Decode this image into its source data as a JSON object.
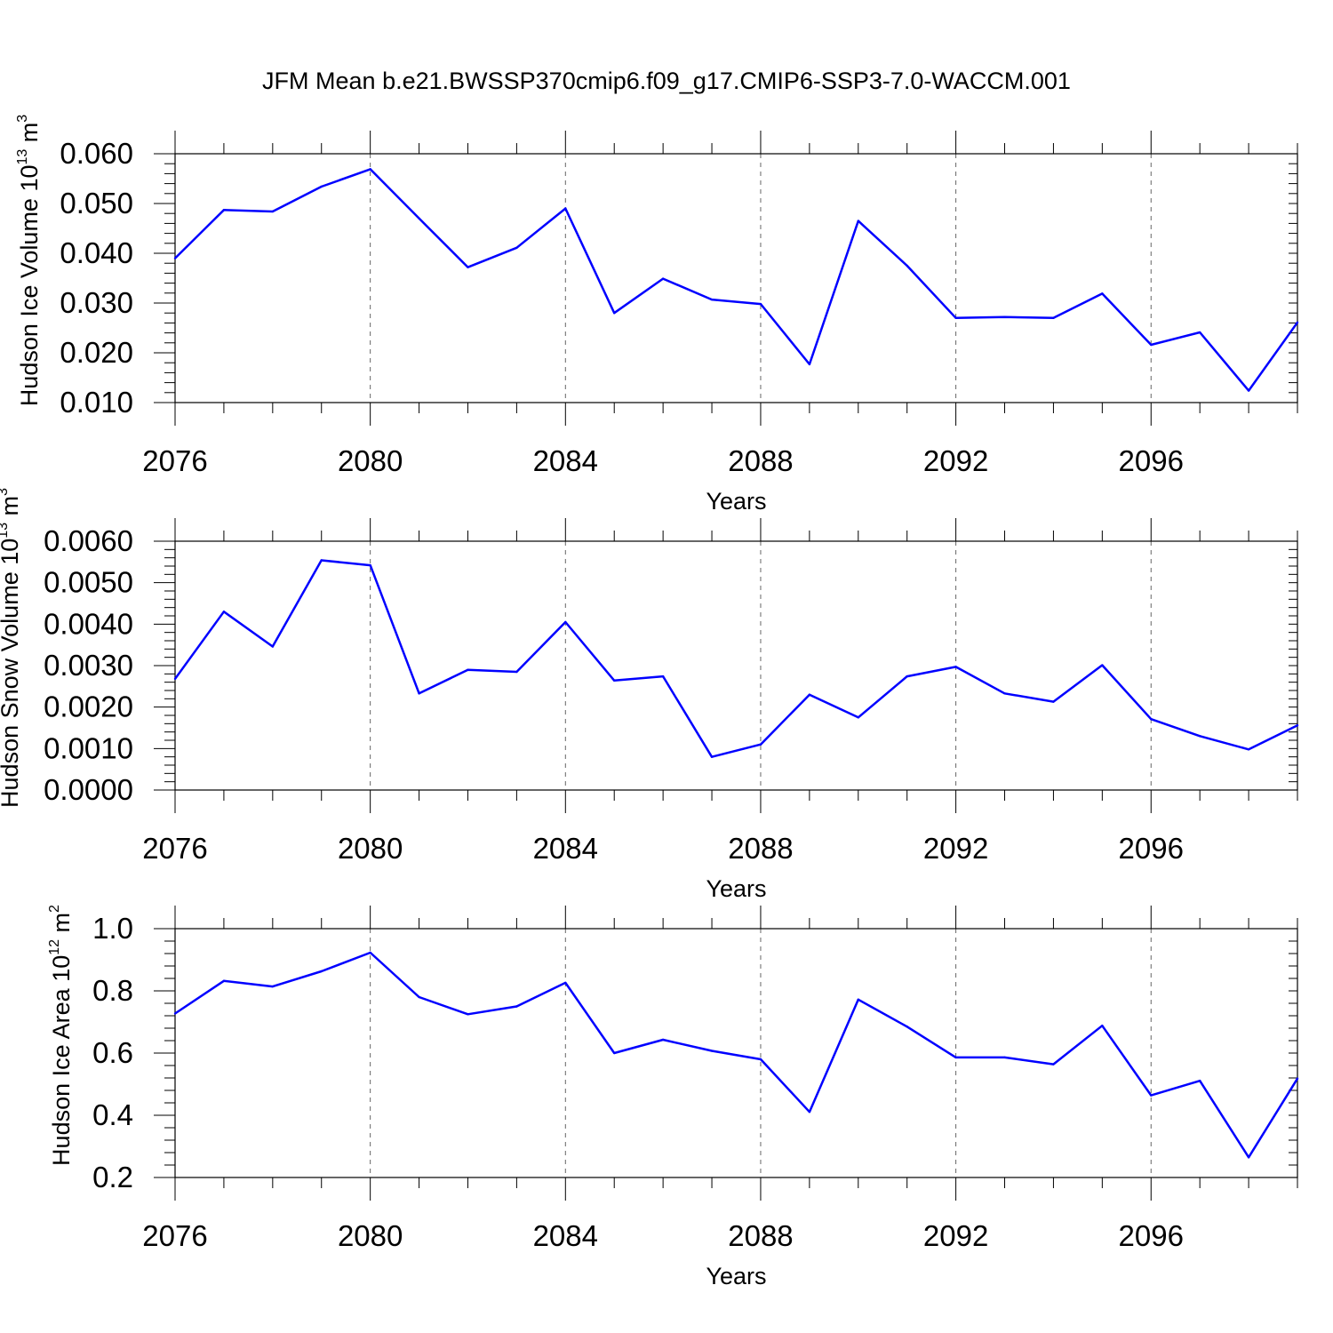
{
  "title": "JFM Mean b.e21.BWSSP370cmip6.f09_g17.CMIP6-SSP3-7.0-WACCM.001",
  "colors": {
    "line": "#0000ff",
    "grid": "#666666",
    "axis": "#000000"
  },
  "chart_data": [
    {
      "type": "line",
      "name": "ice-volume",
      "ylabel": "Hudson Ice Volume",
      "yunits_base": "10",
      "yunits_exp": "13",
      "yunits_unit": "m",
      "yunits_unit_exp": "3",
      "xlabel": "Years",
      "xlim": [
        2076,
        2099
      ],
      "ylim": [
        0.01,
        0.06
      ],
      "xticks": [
        "2076",
        "2080",
        "2084",
        "2088",
        "2092",
        "2096"
      ],
      "xtick_values": [
        2076,
        2080,
        2084,
        2088,
        2092,
        2096
      ],
      "yticks": [
        "0.010",
        "0.020",
        "0.030",
        "0.040",
        "0.050",
        "0.060"
      ],
      "ytick_values": [
        0.01,
        0.02,
        0.03,
        0.04,
        0.05,
        0.06
      ],
      "x": [
        2076,
        2077,
        2078,
        2079,
        2080,
        2081,
        2082,
        2083,
        2084,
        2085,
        2086,
        2087,
        2088,
        2089,
        2090,
        2091,
        2092,
        2093,
        2094,
        2095,
        2096,
        2097,
        2098,
        2099
      ],
      "values": [
        0.039,
        0.0487,
        0.0484,
        0.0534,
        0.0569,
        0.047,
        0.0372,
        0.0411,
        0.049,
        0.028,
        0.0349,
        0.0307,
        0.0298,
        0.0177,
        0.0465,
        0.0375,
        0.027,
        0.0272,
        0.027,
        0.0319,
        0.0216,
        0.0241,
        0.0124,
        0.0261
      ]
    },
    {
      "type": "line",
      "name": "snow-volume",
      "ylabel": "Hudson Snow Volume",
      "yunits_base": "10",
      "yunits_exp": "13",
      "yunits_unit": "m",
      "yunits_unit_exp": "3",
      "xlabel": "Years",
      "xlim": [
        2076,
        2099
      ],
      "ylim": [
        0.0,
        0.006
      ],
      "xticks": [
        "2076",
        "2080",
        "2084",
        "2088",
        "2092",
        "2096"
      ],
      "xtick_values": [
        2076,
        2080,
        2084,
        2088,
        2092,
        2096
      ],
      "yticks": [
        "0.0000",
        "0.0010",
        "0.0020",
        "0.0030",
        "0.0040",
        "0.0050",
        "0.0060"
      ],
      "ytick_values": [
        0.0,
        0.001,
        0.002,
        0.003,
        0.004,
        0.005,
        0.006
      ],
      "x": [
        2076,
        2077,
        2078,
        2079,
        2080,
        2081,
        2082,
        2083,
        2084,
        2085,
        2086,
        2087,
        2088,
        2089,
        2090,
        2091,
        2092,
        2093,
        2094,
        2095,
        2096,
        2097,
        2098,
        2099
      ],
      "values": [
        0.00268,
        0.0043,
        0.00346,
        0.00554,
        0.00542,
        0.00233,
        0.0029,
        0.00285,
        0.00405,
        0.00264,
        0.00274,
        0.0008,
        0.0011,
        0.0023,
        0.00175,
        0.00274,
        0.00297,
        0.00233,
        0.00213,
        0.00301,
        0.00171,
        0.0013,
        0.00098,
        0.00156
      ]
    },
    {
      "type": "line",
      "name": "ice-area",
      "ylabel": "Hudson Ice Area",
      "yunits_base": "10",
      "yunits_exp": "12",
      "yunits_unit": "m",
      "yunits_unit_exp": "2",
      "xlabel": "Years",
      "xlim": [
        2076,
        2099
      ],
      "ylim": [
        0.2,
        1.0
      ],
      "xticks": [
        "2076",
        "2080",
        "2084",
        "2088",
        "2092",
        "2096"
      ],
      "xtick_values": [
        2076,
        2080,
        2084,
        2088,
        2092,
        2096
      ],
      "yticks": [
        "0.2",
        "0.4",
        "0.6",
        "0.8",
        "1.0"
      ],
      "ytick_values": [
        0.2,
        0.4,
        0.6,
        0.8,
        1.0
      ],
      "x": [
        2076,
        2077,
        2078,
        2079,
        2080,
        2081,
        2082,
        2083,
        2084,
        2085,
        2086,
        2087,
        2088,
        2089,
        2090,
        2091,
        2092,
        2093,
        2094,
        2095,
        2096,
        2097,
        2098,
        2099
      ],
      "values": [
        0.727,
        0.832,
        0.814,
        0.863,
        0.923,
        0.78,
        0.725,
        0.75,
        0.826,
        0.6,
        0.643,
        0.607,
        0.58,
        0.411,
        0.772,
        0.685,
        0.586,
        0.586,
        0.564,
        0.688,
        0.464,
        0.511,
        0.265,
        0.518
      ]
    }
  ]
}
